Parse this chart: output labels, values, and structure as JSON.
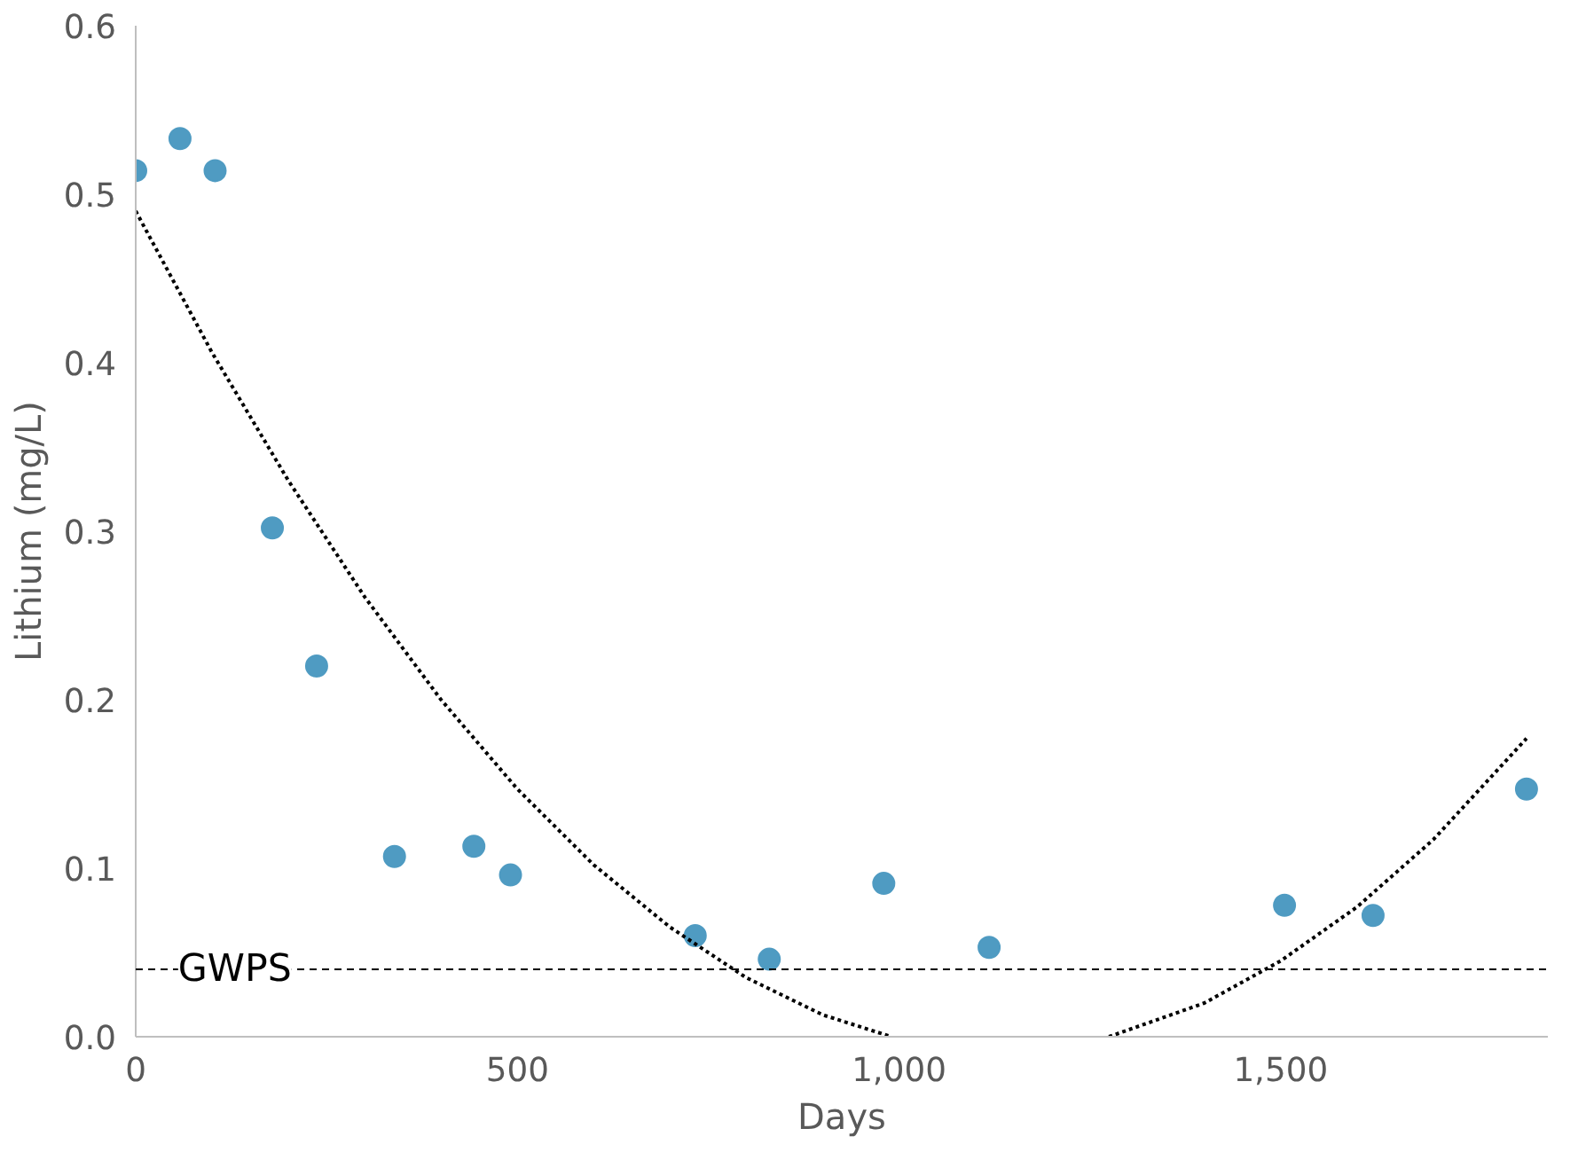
{
  "chart_data": {
    "type": "scatter",
    "xlabel": "Days",
    "ylabel": "Lithium (mg/L)",
    "xlim": [
      0,
      1850
    ],
    "xticks": [
      0,
      500,
      {
        "value": 1000,
        "label": "1,000"
      },
      {
        "value": 1500,
        "label": "1,500"
      }
    ],
    "ylim": [
      0,
      0.6
    ],
    "yticks": [
      {
        "value": 0,
        "label": "0.0"
      },
      0.1,
      0.2,
      0.3,
      0.4,
      0.5,
      0.6
    ],
    "grid": false,
    "marker": "circle",
    "series": [
      {
        "color": "#4f9bc2",
        "x": [
          0,
          58,
          104,
          179,
          237,
          339,
          443,
          491,
          733,
          830,
          980,
          1118,
          1505,
          1621,
          1822
        ],
        "values": [
          0.514,
          0.533,
          0.514,
          0.302,
          0.22,
          0.107,
          0.113,
          0.096,
          0.06,
          0.046,
          0.091,
          0.053,
          0.078,
          0.072,
          0.147
        ]
      },
      {
        "type": "line",
        "color": "#000000",
        "line_style": "dotted",
        "marker": "none",
        "x": [
          0,
          100,
          200,
          300,
          400,
          500,
          600,
          700,
          800,
          900,
          990,
          1130,
          1275,
          1400,
          1500,
          1600,
          1700,
          1822
        ],
        "values": [
          0.49,
          0.406,
          0.33,
          0.261,
          0.2,
          0.147,
          0.102,
          0.065,
          0.035,
          0.013,
          0,
          null,
          0,
          0.02,
          0.045,
          0.077,
          0.117,
          0.177
        ]
      }
    ],
    "ref_lines": [
      {
        "axis": "y",
        "value": 0.04,
        "label": "GWPS",
        "color": "#000000",
        "line_style": "dashed"
      }
    ]
  }
}
